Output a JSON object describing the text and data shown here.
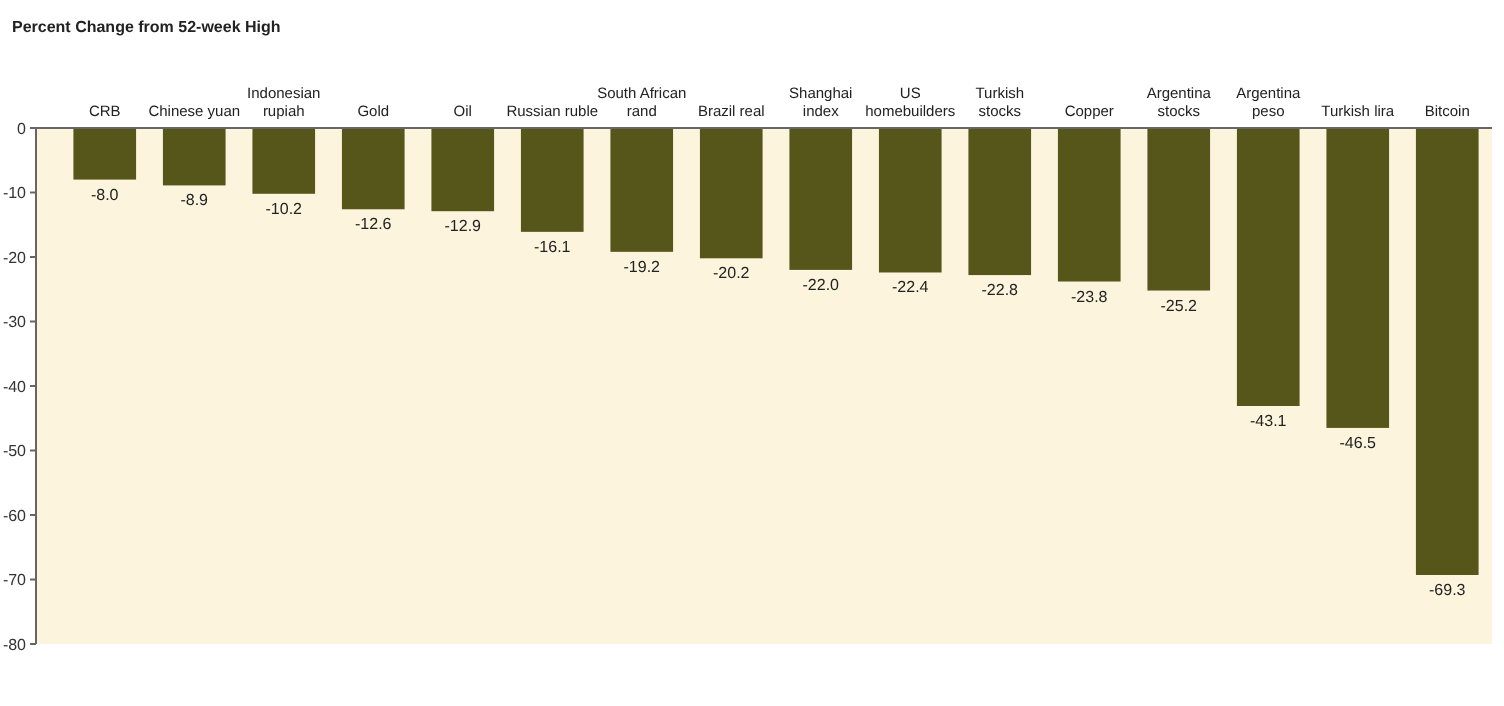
{
  "chart_data": {
    "type": "bar",
    "title": "Percent Change from 52-week High",
    "categories": [
      "CRB",
      "Chinese yuan",
      "Indonesian rupiah",
      "Gold",
      "Oil",
      "Russian ruble",
      "South African rand",
      "Brazil real",
      "Shanghai index",
      "US homebuilders",
      "Turkish stocks",
      "Copper",
      "Argentina stocks",
      "Argentina peso",
      "Turkish lira",
      "Bitcoin"
    ],
    "values": [
      -8.0,
      -8.9,
      -10.2,
      -12.6,
      -12.9,
      -16.1,
      -19.2,
      -20.2,
      -22.0,
      -22.4,
      -22.8,
      -23.8,
      -25.2,
      -43.1,
      -46.5,
      -69.3
    ],
    "value_labels": [
      "-8.0",
      "-8.9",
      "-10.2",
      "-12.6",
      "-12.9",
      "-16.1",
      "-19.2",
      "-20.2",
      "-22.0",
      "-22.4",
      "-22.8",
      "-23.8",
      "-25.2",
      "-43.1",
      "-46.5",
      "-69.3"
    ],
    "color": "#56561a",
    "ylim": [
      -80,
      0
    ],
    "yticks": [
      0,
      -10,
      -20,
      -30,
      -40,
      -50,
      -60,
      -70,
      -80
    ],
    "grid": false
  }
}
